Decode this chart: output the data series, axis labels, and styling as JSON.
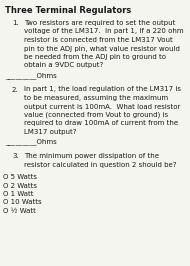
{
  "title": "Three Terminal Regulators",
  "background_color": "#f5f5f0",
  "text_color": "#1a1a1a",
  "title_fontsize": 6.0,
  "body_fontsize": 5.0,
  "content": [
    {
      "type": "question",
      "number": "1.",
      "lines": [
        "Two resistors are required to set the output",
        "voltage of the LM317.  In part 1, if a 220 ohm",
        "resistor is connected from the LM317 Vout",
        "pin to the ADJ pin, what value resistor would",
        "be needed from the ADJ pin to ground to",
        "obtain a 9VDC output?"
      ],
      "answer_line": "_________Ohms"
    },
    {
      "type": "question",
      "number": "2.",
      "lines": [
        "In part 1, the load regulation of the LM317 is",
        "to be measured, assuming the maximum",
        "output current is 100mA.  What load resistor",
        "value (connected from Vout to ground) is",
        "required to draw 100mA of current from the",
        "LM317 output?"
      ],
      "answer_line": "_________Ohms"
    },
    {
      "type": "question",
      "number": "3.",
      "lines": [
        "The minimum power dissipation of the",
        "resistor calculated in question 2 should be?"
      ],
      "answer_line": ""
    },
    {
      "type": "choices",
      "items": [
        "O 5 Watts",
        "O 2 Watts",
        "O 1 Watt",
        "O 10 Watts",
        "O ½ Watt"
      ]
    }
  ]
}
